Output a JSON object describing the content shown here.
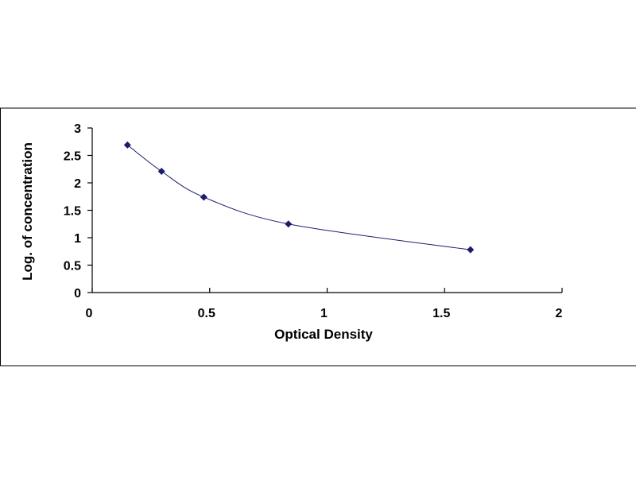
{
  "chart_data": {
    "type": "scatter",
    "title": "",
    "xlabel": "Optical Density",
    "ylabel": "Log. of concentration",
    "xlim": [
      0,
      2
    ],
    "ylim": [
      0,
      3
    ],
    "x_ticks": [
      "0",
      "0.5",
      "1",
      "1.5",
      "2"
    ],
    "y_ticks": [
      "0",
      "0.5",
      "1",
      "1.5",
      "2",
      "2.5",
      "3"
    ],
    "grid": false,
    "legend": "none",
    "series": [
      {
        "x": [
          0.15,
          0.295,
          0.475,
          0.835,
          1.61
        ],
        "y": [
          2.69,
          2.21,
          1.74,
          1.25,
          0.78
        ],
        "marker": "diamond",
        "smooth_line": true
      }
    ],
    "colors": {
      "marker": "#1c1c6e",
      "line": "#1c1c6e",
      "axis": "#000000",
      "frame": "#000000"
    }
  }
}
